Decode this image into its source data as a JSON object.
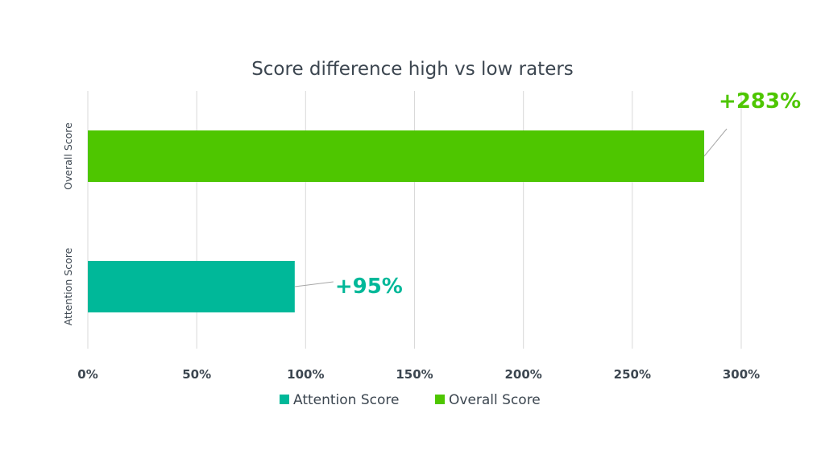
{
  "chart_data": {
    "type": "bar",
    "orientation": "horizontal",
    "title": "Score difference high vs low raters",
    "categories": [
      "Overall Score",
      "Attention Score"
    ],
    "series": [
      {
        "name": "Overall Score",
        "category": "Overall Score",
        "value": 283,
        "label": "+283%",
        "color": "#4ec600"
      },
      {
        "name": "Attention Score",
        "category": "Attention Score",
        "value": 95,
        "label": "+95%",
        "color": "#00b899"
      }
    ],
    "x_ticks": [
      "0%",
      "50%",
      "100%",
      "150%",
      "200%",
      "250%",
      "300%"
    ],
    "xlim": [
      0,
      300
    ],
    "grid": "vertical",
    "legend_position": "bottom",
    "legend": [
      "Attention Score",
      "Overall Score"
    ]
  }
}
